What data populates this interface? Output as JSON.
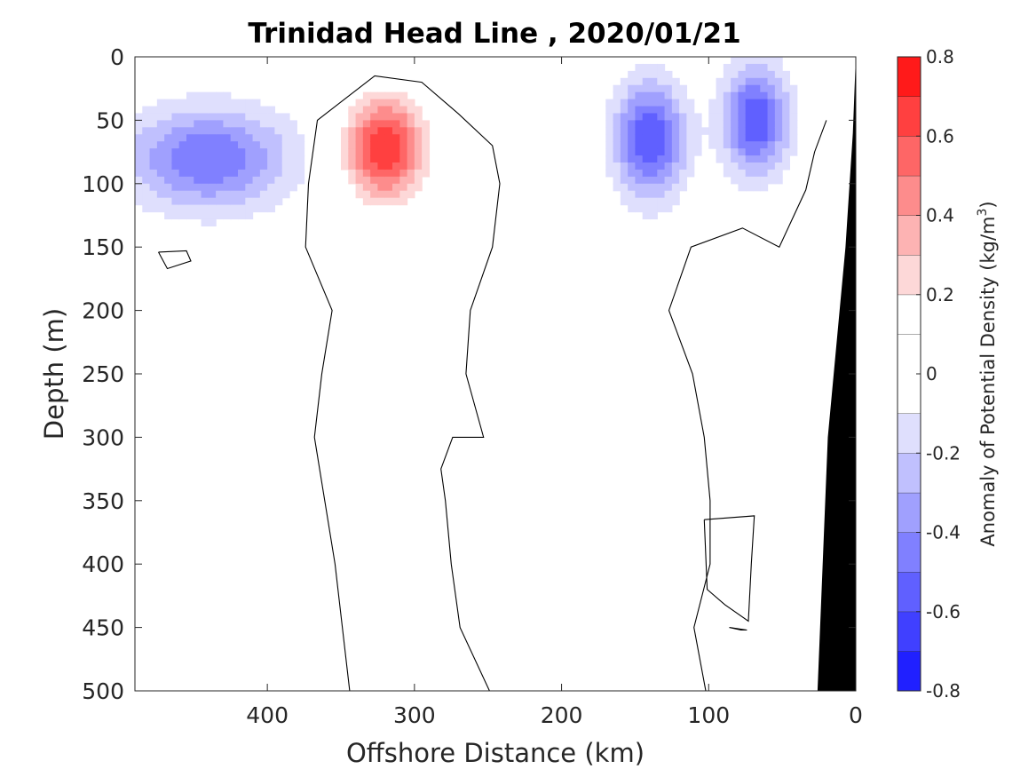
{
  "chart_data": {
    "type": "contour",
    "title": "Trinidad Head Line , 2020/01/21",
    "xlabel": "Offshore Distance (km)",
    "ylabel": "Depth (m)",
    "xlim": [
      490,
      0
    ],
    "ylim": [
      0,
      500
    ],
    "x_ticks": [
      400,
      300,
      200,
      100,
      0
    ],
    "y_ticks": [
      0,
      50,
      100,
      150,
      200,
      250,
      300,
      350,
      400,
      450,
      500
    ],
    "colorbar": {
      "label_prefix": "Anomaly of Potential Density (kg/m",
      "label_superscript": "3",
      "label_suffix": ")",
      "range": [
        -0.8,
        0.8
      ],
      "levels": [
        -0.8,
        -0.7,
        -0.6,
        -0.5,
        -0.4,
        -0.3,
        -0.2,
        -0.1,
        0.1,
        0.2,
        0.3,
        0.4,
        0.5,
        0.6,
        0.7,
        0.8
      ],
      "tick_values": [
        0.8,
        0.6,
        0.4,
        0.2,
        0,
        -0.2,
        -0.4,
        -0.6,
        -0.8
      ],
      "tick_labels": [
        "0.8",
        "0.6",
        "0.4",
        "0.2",
        "0",
        "-0.2",
        "-0.4",
        "-0.6",
        "-0.8"
      ],
      "colors": [
        "#0000ff",
        "#2020ff",
        "#4040ff",
        "#6060ff",
        "#8080ff",
        "#a0a0fe",
        "#c0c0fe",
        "#dfdffd",
        "#ffffff",
        "#ffffff",
        "#fdd8d8",
        "#fdb3b3",
        "#fd8c8c",
        "#fe6666",
        "#ff4040",
        "#ff1a1a",
        "#ff0000"
      ]
    },
    "features": [
      {
        "name": "positive anomaly core",
        "x": 320,
        "y": 72,
        "max": 0.7
      },
      {
        "name": "negative anomaly core near coast",
        "x": 68,
        "y": 50,
        "min": -0.6
      },
      {
        "name": "negative anomaly core offshore",
        "x": 140,
        "y": 65,
        "min": -0.6
      },
      {
        "name": "negative anomaly offshore",
        "x": 440,
        "y": 80,
        "min": -0.5
      }
    ],
    "zero_contours": [
      {
        "name": "warm column zero contour",
        "points": [
          [
            344,
            500
          ],
          [
            354,
            400
          ],
          [
            368,
            300
          ],
          [
            363,
            250
          ],
          [
            356,
            200
          ],
          [
            374,
            150
          ],
          [
            372,
            100
          ],
          [
            366,
            50
          ],
          [
            327,
            15
          ],
          [
            295,
            20
          ],
          [
            270,
            45
          ],
          [
            247,
            70
          ],
          [
            242,
            100
          ],
          [
            247,
            150
          ],
          [
            262,
            200
          ],
          [
            265,
            250
          ],
          [
            253,
            300
          ],
          [
            274,
            300
          ],
          [
            282,
            325
          ],
          [
            279,
            350
          ],
          [
            275,
            400
          ],
          [
            269,
            450
          ],
          [
            249,
            500
          ]
        ]
      },
      {
        "name": "inshore zero contour",
        "points": [
          [
            102,
            500
          ],
          [
            110,
            450
          ],
          [
            99,
            400
          ],
          [
            99,
            350
          ],
          [
            103,
            300
          ],
          [
            111,
            250
          ],
          [
            127,
            200
          ],
          [
            112,
            150
          ],
          [
            77,
            135
          ],
          [
            52,
            150
          ],
          [
            34,
            105
          ],
          [
            28,
            75
          ],
          [
            20,
            50
          ]
        ]
      },
      {
        "name": "deep eddy contour",
        "points": [
          [
            103,
            365
          ],
          [
            101,
            420
          ],
          [
            89,
            432
          ],
          [
            73,
            445
          ],
          [
            71,
            400
          ],
          [
            69,
            362
          ],
          [
            103,
            365
          ]
        ]
      },
      {
        "name": "small deep contour",
        "points": [
          [
            86,
            450
          ],
          [
            78,
            452
          ],
          [
            74,
            452
          ],
          [
            86,
            450
          ]
        ]
      },
      {
        "name": "offshore small contour",
        "points": [
          [
            474,
            154
          ],
          [
            455,
            153
          ],
          [
            452,
            161
          ],
          [
            468,
            167
          ],
          [
            474,
            154
          ]
        ]
      }
    ],
    "bathymetry": [
      [
        0,
        0
      ],
      [
        0,
        500
      ],
      [
        26,
        500
      ],
      [
        19,
        300
      ],
      [
        7,
        150
      ],
      [
        2,
        60
      ],
      [
        0,
        0
      ]
    ],
    "grid": false
  }
}
